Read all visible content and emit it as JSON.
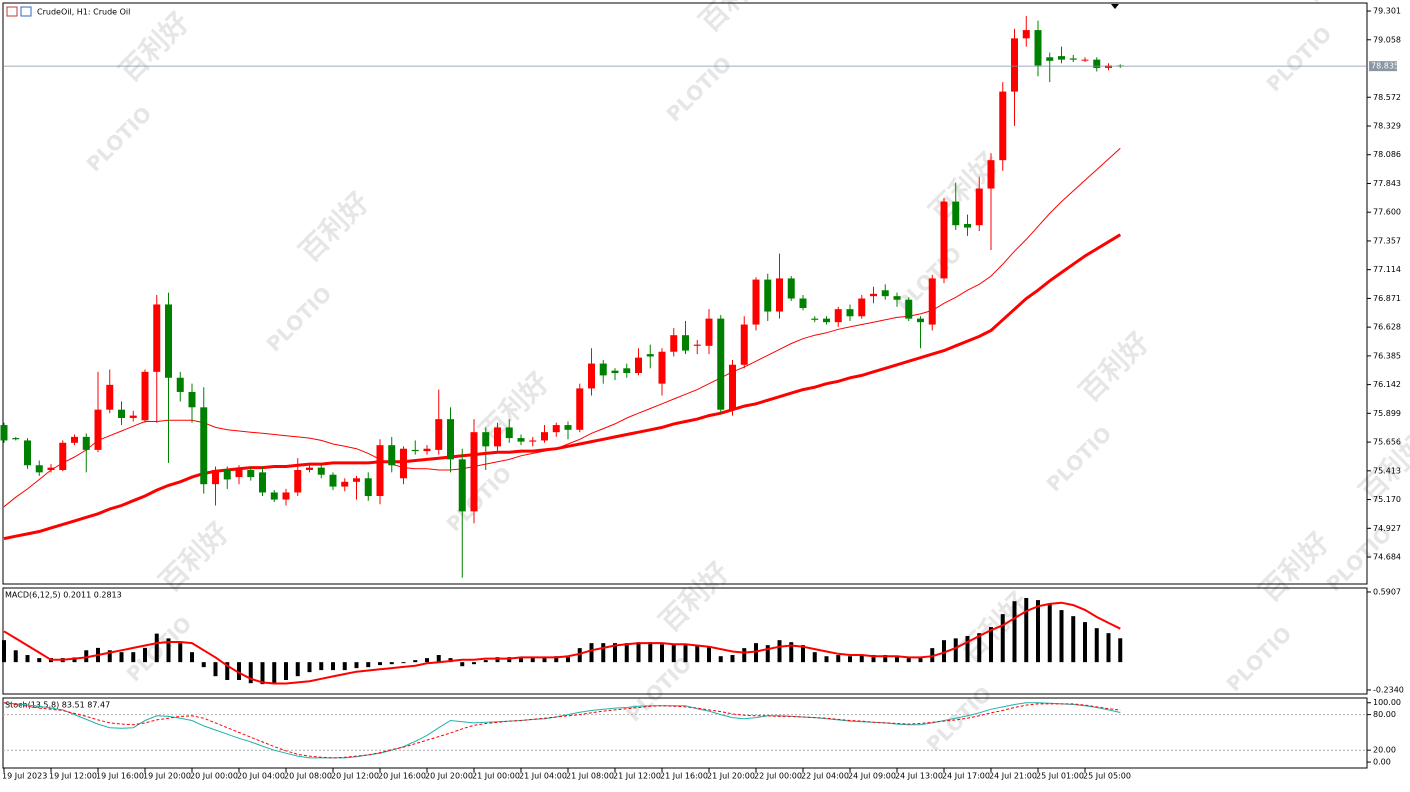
{
  "chart_data": [
    {
      "type": "candlestick",
      "title": "CrudeOil, H1: Crude Oil",
      "categories": [
        "19 Jul 2023",
        null,
        null,
        null,
        "19 Jul 12:00",
        null,
        null,
        null,
        "19 Jul 16:00",
        null,
        null,
        null,
        "19 Jul 20:00",
        null,
        null,
        null,
        "20 Jul 00:00",
        null,
        null,
        null,
        "20 Jul 04:00",
        null,
        null,
        null,
        "20 Jul 08:00",
        null,
        null,
        null,
        "20 Jul 12:00",
        null,
        null,
        null,
        "20 Jul 16:00",
        null,
        null,
        null,
        "20 Jul 20:00",
        null,
        null,
        null,
        "21 Jul 00:00",
        null,
        null,
        null,
        "21 Jul 04:00",
        null,
        null,
        null,
        "21 Jul 08:00",
        null,
        null,
        null,
        "21 Jul 12:00",
        null,
        null,
        null,
        "21 Jul 16:00",
        null,
        null,
        null,
        "21 Jul 20:00",
        null,
        null,
        null,
        "22 Jul 00:00",
        null,
        null,
        null,
        "22 Jul 04:00",
        null,
        null,
        null,
        "24 Jul 09:00",
        null,
        null,
        null,
        "24 Jul 13:00",
        null,
        null,
        null,
        "24 Jul 17:00",
        null,
        null,
        null,
        "24 Jul 21:00",
        null,
        null,
        null,
        "25 Jul 01:00",
        null,
        null,
        null,
        "25 Jul 05:00",
        null,
        null,
        null
      ],
      "open": [
        75.8,
        75.69,
        75.67,
        75.46,
        75.42,
        75.42,
        75.65,
        75.7,
        75.59,
        75.93,
        75.93,
        75.86,
        75.84,
        76.25,
        76.82,
        76.2,
        76.08,
        75.95,
        75.3,
        75.42,
        75.36,
        75.42,
        75.4,
        75.23,
        75.17,
        75.23,
        75.42,
        75.44,
        75.38,
        75.28,
        75.32,
        75.35,
        75.2,
        75.63,
        75.35,
        75.59,
        75.58,
        75.59,
        75.85,
        75.51,
        75.07,
        75.74,
        75.62,
        75.78,
        75.69,
        75.66,
        75.67,
        75.74,
        75.8,
        75.76,
        76.11,
        76.32,
        76.26,
        76.28,
        76.24,
        76.4,
        76.15,
        76.42,
        76.56,
        76.47,
        76.47,
        76.7,
        75.93,
        76.31,
        76.65,
        77.03,
        76.76,
        77.04,
        76.87,
        76.7,
        76.7,
        76.67,
        76.78,
        76.72,
        76.89,
        76.94,
        76.89,
        76.86,
        76.7,
        76.65,
        77.04,
        77.69,
        77.5,
        77.49,
        77.8,
        78.04,
        78.62,
        79.07,
        79.14,
        78.91,
        78.92,
        78.9,
        78.89,
        78.89,
        78.82,
        78.84
      ],
      "high": [
        75.82,
        75.7,
        75.69,
        75.5,
        75.47,
        75.67,
        75.72,
        75.73,
        76.25,
        76.27,
        76.0,
        75.92,
        76.27,
        76.9,
        76.92,
        76.25,
        76.15,
        76.12,
        75.45,
        75.45,
        75.46,
        75.45,
        75.45,
        75.25,
        75.26,
        75.52,
        75.48,
        75.48,
        75.4,
        75.35,
        75.37,
        75.4,
        75.68,
        75.7,
        75.62,
        75.67,
        75.63,
        76.1,
        75.95,
        75.6,
        75.85,
        75.78,
        75.82,
        75.85,
        75.72,
        75.7,
        75.8,
        75.82,
        75.83,
        76.15,
        76.45,
        76.35,
        76.28,
        76.32,
        76.45,
        76.48,
        76.45,
        76.62,
        76.68,
        76.52,
        76.78,
        76.73,
        76.35,
        76.72,
        77.05,
        77.08,
        77.25,
        77.06,
        76.9,
        76.72,
        76.72,
        76.8,
        76.82,
        76.9,
        76.97,
        76.99,
        76.92,
        76.88,
        76.72,
        77.07,
        77.72,
        77.85,
        77.58,
        77.9,
        78.1,
        78.7,
        79.15,
        79.26,
        79.22,
        78.95,
        79.0,
        78.93,
        78.91,
        78.91,
        78.86,
        78.85
      ],
      "low": [
        75.65,
        75.67,
        75.43,
        75.37,
        75.4,
        75.41,
        75.63,
        75.4,
        75.57,
        75.9,
        75.8,
        75.83,
        75.82,
        75.82,
        75.48,
        76.0,
        75.82,
        75.22,
        75.12,
        75.26,
        75.3,
        75.33,
        75.2,
        75.15,
        75.12,
        75.2,
        75.4,
        75.35,
        75.25,
        75.24,
        75.17,
        75.16,
        75.13,
        75.4,
        75.3,
        75.55,
        75.55,
        75.55,
        75.4,
        74.51,
        74.97,
        75.42,
        75.58,
        75.65,
        75.63,
        75.62,
        75.65,
        75.7,
        75.68,
        75.74,
        76.05,
        76.15,
        76.18,
        76.2,
        76.22,
        76.28,
        76.05,
        76.38,
        76.4,
        76.4,
        76.4,
        75.9,
        75.88,
        76.28,
        76.6,
        76.68,
        76.7,
        76.85,
        76.77,
        76.67,
        76.65,
        76.63,
        76.68,
        76.7,
        76.83,
        76.86,
        76.8,
        76.68,
        76.45,
        76.6,
        77.0,
        77.45,
        77.4,
        77.44,
        77.28,
        77.95,
        78.33,
        79.0,
        78.75,
        78.7,
        78.86,
        78.87,
        78.87,
        78.79,
        78.8,
        78.82
      ],
      "close": [
        75.67,
        75.68,
        75.46,
        75.4,
        75.44,
        75.65,
        75.7,
        75.59,
        75.93,
        76.14,
        75.86,
        75.88,
        76.25,
        76.82,
        76.2,
        76.08,
        75.95,
        75.3,
        75.42,
        75.34,
        75.42,
        75.36,
        75.23,
        75.17,
        75.23,
        75.42,
        75.44,
        75.38,
        75.28,
        75.32,
        75.35,
        75.2,
        75.63,
        75.46,
        75.6,
        75.58,
        75.6,
        75.85,
        75.51,
        75.07,
        75.74,
        75.62,
        75.78,
        75.69,
        75.66,
        75.67,
        75.74,
        75.8,
        75.76,
        76.11,
        76.32,
        76.22,
        76.24,
        76.24,
        76.37,
        76.38,
        76.42,
        76.56,
        76.43,
        76.48,
        76.7,
        75.93,
        76.31,
        76.65,
        77.03,
        76.76,
        77.04,
        76.87,
        76.79,
        76.69,
        76.67,
        76.78,
        76.72,
        76.87,
        76.91,
        76.89,
        76.86,
        76.7,
        76.67,
        77.04,
        77.69,
        77.49,
        77.47,
        77.8,
        78.04,
        78.62,
        79.07,
        79.14,
        78.84,
        78.88,
        78.89,
        78.89,
        78.89,
        78.82,
        78.84,
        78.835
      ],
      "up_color": "#ff0000",
      "down_color": "#008000",
      "overlays": [
        {
          "color": "#ff0000",
          "values": [
            75.11,
            75.19,
            75.26,
            75.34,
            75.42,
            75.48,
            75.53,
            75.59,
            75.67,
            75.71,
            75.75,
            75.79,
            75.83,
            75.83,
            75.84,
            75.84,
            75.84,
            75.82,
            75.78,
            75.76,
            75.75,
            75.74,
            75.73,
            75.72,
            75.71,
            75.7,
            75.69,
            75.67,
            75.64,
            75.62,
            75.6,
            75.56,
            75.51,
            75.47,
            75.44,
            75.43,
            75.43,
            75.42,
            75.42,
            75.43,
            75.45,
            75.47,
            75.49,
            75.51,
            75.54,
            75.56,
            75.58,
            75.6,
            75.64,
            75.68,
            75.73,
            75.77,
            75.81,
            75.86,
            75.9,
            75.94,
            75.98,
            76.02,
            76.06,
            76.1,
            76.15,
            76.2,
            76.25,
            76.29,
            76.34,
            76.39,
            76.44,
            76.49,
            76.53,
            76.56,
            76.58,
            76.61,
            76.63,
            76.65,
            76.67,
            76.69,
            76.71,
            76.72,
            76.74,
            76.77,
            76.83,
            76.88,
            76.94,
            76.99,
            77.06,
            77.16,
            77.27,
            77.37,
            77.48,
            77.59,
            77.69,
            77.78,
            77.87,
            77.96,
            78.05,
            78.14
          ]
        },
        {
          "color": "#ff0000",
          "values": [
            74.84,
            74.86,
            74.88,
            74.9,
            74.93,
            74.96,
            74.99,
            75.02,
            75.05,
            75.09,
            75.12,
            75.16,
            75.2,
            75.25,
            75.29,
            75.32,
            75.36,
            75.39,
            75.41,
            75.42,
            75.43,
            75.44,
            75.44,
            75.45,
            75.45,
            75.46,
            75.47,
            75.47,
            75.48,
            75.48,
            75.48,
            75.48,
            75.49,
            75.49,
            75.49,
            75.5,
            75.51,
            75.52,
            75.53,
            75.54,
            75.55,
            75.56,
            75.57,
            75.57,
            75.58,
            75.58,
            75.59,
            75.6,
            75.62,
            75.64,
            75.66,
            75.68,
            75.7,
            75.72,
            75.74,
            75.76,
            75.78,
            75.81,
            75.83,
            75.85,
            75.88,
            75.9,
            75.93,
            75.96,
            75.98,
            76.01,
            76.04,
            76.07,
            76.1,
            76.12,
            76.15,
            76.17,
            76.2,
            76.22,
            76.25,
            76.28,
            76.31,
            76.34,
            76.37,
            76.4,
            76.43,
            76.47,
            76.51,
            76.55,
            76.6,
            76.69,
            76.78,
            76.87,
            76.94,
            77.02,
            77.09,
            77.16,
            77.23,
            77.29,
            77.35,
            77.41
          ]
        }
      ],
      "current_price": 78.835,
      "ylim": [
        74.456,
        79.369
      ],
      "yticks": [
        79.301,
        79.058,
        78.572,
        78.329,
        78.086,
        77.843,
        {
          "value": 77.6,
          "label": "77.600"
        },
        77.357,
        77.114,
        76.871,
        76.628,
        76.385,
        76.142,
        75.899,
        75.656,
        75.413,
        {
          "value": 75.17,
          "label": "75.170"
        },
        74.927,
        74.684
      ]
    },
    {
      "type": "macd",
      "title": "MACD(6,12,5) 0.2011 0.2813",
      "histogram": {
        "color": "#000000",
        "values": [
          0.185,
          0.1,
          0.06,
          0.034,
          0.034,
          0.034,
          0.04,
          0.1,
          0.12,
          0.1,
          0.084,
          0.084,
          0.12,
          0.24,
          0.2,
          0.16,
          0.084,
          -0.042,
          -0.118,
          -0.15,
          -0.15,
          -0.177,
          -0.185,
          -0.185,
          -0.15,
          -0.118,
          -0.084,
          -0.067,
          -0.067,
          -0.067,
          -0.05,
          -0.042,
          -0.025,
          -0.017,
          -0.008,
          0.017,
          0.034,
          0.06,
          0.034,
          -0.034,
          -0.017,
          0.017,
          0.042,
          0.042,
          0.042,
          0.042,
          0.042,
          0.05,
          0.042,
          0.118,
          0.16,
          0.16,
          0.16,
          0.16,
          0.168,
          0.168,
          0.15,
          0.15,
          0.143,
          0.143,
          0.126,
          0.05,
          0.06,
          0.118,
          0.16,
          0.143,
          0.185,
          0.168,
          0.143,
          0.084,
          0.05,
          0.06,
          0.05,
          0.06,
          0.06,
          0.06,
          0.05,
          0.034,
          0.034,
          0.118,
          0.185,
          0.2,
          0.22,
          0.244,
          0.295,
          0.404,
          0.513,
          0.54,
          0.522,
          0.496,
          0.438,
          0.387,
          0.337,
          0.286,
          0.244,
          0.2011
        ]
      },
      "signal": {
        "color": "#ff0000",
        "values": [
          0.26,
          0.2,
          0.14,
          0.08,
          0.02,
          0.02,
          0.03,
          0.04,
          0.06,
          0.08,
          0.1,
          0.12,
          0.14,
          0.16,
          0.17,
          0.17,
          0.16,
          0.1,
          0.04,
          -0.03,
          -0.09,
          -0.14,
          -0.17,
          -0.18,
          -0.18,
          -0.17,
          -0.16,
          -0.14,
          -0.12,
          -0.1,
          -0.08,
          -0.07,
          -0.06,
          -0.05,
          -0.04,
          -0.03,
          -0.01,
          0.0,
          0.01,
          0.02,
          0.02,
          0.03,
          0.03,
          0.03,
          0.04,
          0.04,
          0.04,
          0.04,
          0.05,
          0.07,
          0.1,
          0.12,
          0.14,
          0.15,
          0.16,
          0.16,
          0.16,
          0.15,
          0.15,
          0.14,
          0.13,
          0.11,
          0.09,
          0.08,
          0.09,
          0.11,
          0.13,
          0.14,
          0.13,
          0.11,
          0.09,
          0.07,
          0.06,
          0.06,
          0.05,
          0.05,
          0.05,
          0.04,
          0.04,
          0.05,
          0.08,
          0.12,
          0.17,
          0.22,
          0.27,
          0.31,
          0.37,
          0.43,
          0.47,
          0.49,
          0.5,
          0.48,
          0.44,
          0.38,
          0.33,
          0.2813
        ]
      },
      "ylim": [
        -0.268,
        0.624
      ],
      "yticks": [
        0.5907,
        {
          "value": -0.234,
          "label": "-0.2340"
        }
      ]
    },
    {
      "type": "stochastic",
      "title": "Stoch(13,5,8) 83.51 87.47",
      "main": {
        "color": "#20b2aa",
        "values": [
          100,
          98,
          96,
          94,
          91,
          88,
          80,
          72,
          64,
          58,
          57,
          58,
          70,
          78,
          77,
          74,
          70,
          61,
          54,
          47,
          40,
          34,
          27,
          20,
          15,
          10,
          7,
          7,
          7,
          7,
          9,
          12,
          15,
          20,
          26,
          35,
          45,
          58,
          70,
          68,
          66,
          67,
          68,
          69,
          70,
          72,
          73,
          76,
          80,
          84,
          87,
          89,
          91,
          92,
          94,
          95,
          95,
          95,
          95,
          90,
          86,
          80,
          75,
          73,
          75,
          78,
          78,
          77,
          76,
          75,
          73,
          71,
          69,
          68,
          67,
          66,
          64,
          63,
          63,
          66,
          70,
          74,
          78,
          83,
          89,
          93,
          97,
          100,
          100,
          99,
          98,
          97,
          95,
          92,
          88,
          83.51
        ]
      },
      "signal": {
        "color": "#ff0000",
        "values": [
          100,
          97,
          94,
          91,
          89,
          87,
          82,
          77,
          71,
          66,
          64,
          63,
          66,
          71,
          74,
          77,
          78,
          74,
          66,
          58,
          50,
          42,
          34,
          26,
          19,
          13,
          10,
          8,
          7,
          8,
          10,
          12,
          16,
          21,
          25,
          31,
          37,
          43,
          49,
          56,
          62,
          65,
          67,
          69,
          70,
          72,
          74,
          76,
          78,
          80,
          83,
          86,
          88,
          90,
          92,
          94,
          95,
          94,
          93,
          91,
          88,
          85,
          81,
          79,
          78,
          78,
          77,
          77,
          76,
          75,
          74,
          72,
          70,
          69,
          67,
          66,
          65,
          64,
          65,
          67,
          69,
          71,
          74,
          78,
          83,
          87,
          92,
          96,
          98,
          98,
          98,
          98,
          96,
          93,
          90,
          87.47
        ]
      },
      "levels": [
        80,
        20
      ],
      "ylim": [
        -10,
        108
      ],
      "yticks": [
        {
          "value": 100,
          "label": "100.00"
        },
        {
          "value": 80,
          "label": "80.00"
        },
        {
          "value": 20,
          "label": "20.00"
        },
        {
          "value": 0,
          "label": "0.00"
        }
      ]
    }
  ],
  "watermark": {
    "brand": "PLOTIO",
    "chinese": "百利好"
  }
}
